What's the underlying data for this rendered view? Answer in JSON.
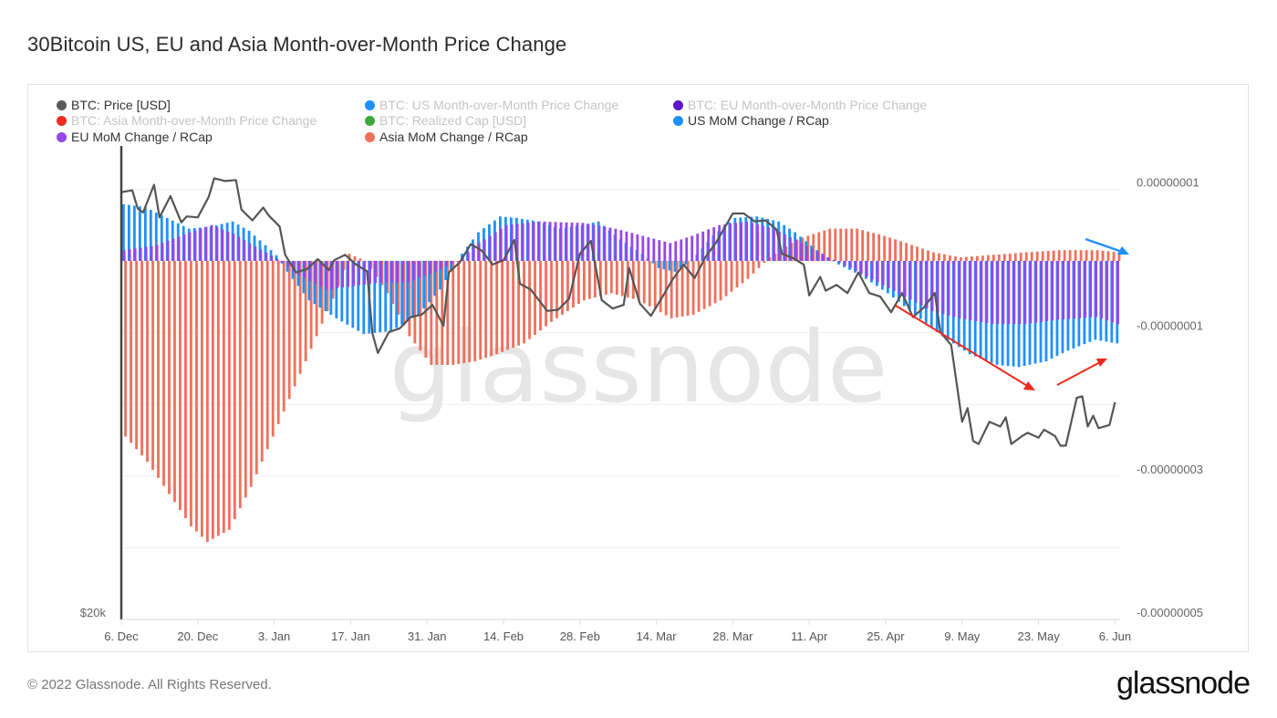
{
  "page": {
    "title": "30Bitcoin US, EU and Asia Month-over-Month Price Change",
    "footer": "© 2022 Glassnode. All Rights Reserved.",
    "logo": "glassnode",
    "watermark": "glassnode"
  },
  "legend": [
    {
      "label": "BTC: Price [USD]",
      "color": "#5a5a5a",
      "active": true
    },
    {
      "label": "BTC: US Month-over-Month Price Change",
      "color": "#1e90ff",
      "active": false
    },
    {
      "label": "BTC: EU Month-over-Month Price Change",
      "color": "#5b17c9",
      "active": false
    },
    {
      "label": "BTC: Asia Month-over-Month Price Change",
      "color": "#ee2a1e",
      "active": false
    },
    {
      "label": "BTC: Realized Cap [USD]",
      "color": "#3da93a",
      "active": false
    },
    {
      "label": "US MoM Change / RCap",
      "color": "#1e90ff",
      "active": true
    },
    {
      "label": "EU MoM Change / RCap",
      "color": "#9547e8",
      "active": true
    },
    {
      "label": "Asia MoM Change / RCap",
      "color": "#ef6f5c",
      "active": true
    }
  ],
  "annotations": [
    {
      "type": "arrow",
      "color": "#1e90ff",
      "description": "blue arrow pointing down-right at latest values"
    },
    {
      "type": "arrow",
      "color": "#ee2a1e",
      "description": "red arrow trending down (late Apr to mid May)"
    },
    {
      "type": "arrow",
      "color": "#ee2a1e",
      "description": "red arrow trending up (late May to early Jun)"
    }
  ],
  "chart_data": {
    "type": "bar",
    "title": "30Bitcoin US, EU and Asia Month-over-Month Price Change",
    "x_start": "2021-12-06",
    "x_end": "2022-06-07",
    "x_ticks": [
      "6. Dec",
      "20. Dec",
      "3. Jan",
      "17. Jan",
      "31. Jan",
      "14. Feb",
      "28. Feb",
      "14. Mar",
      "28. Mar",
      "11. Apr",
      "25. Apr",
      "9. May",
      "23. May",
      "6. Jun"
    ],
    "y_right": {
      "label": "MoM Change / RCap",
      "ticks": [
        "0.00000001",
        "-0.00000001",
        "-0.00000003",
        "-0.00000005"
      ],
      "range": [
        -5e-08,
        1e-08
      ],
      "unit_scale": 1e-08
    },
    "y_left": {
      "label": "Price [USD]",
      "scale": "log",
      "ticks": [
        "$20k"
      ]
    },
    "grid": true,
    "legend_position": "top-left",
    "series": [
      {
        "name": "US MoM Change / RCap",
        "type": "bar",
        "color": "#1e90ff",
        "units": "1e-8",
        "points": [
          [
            "2021-12-06",
            0.79
          ],
          [
            "2021-12-10",
            0.75
          ],
          [
            "2021-12-14",
            0.6
          ],
          [
            "2021-12-18",
            0.45
          ],
          [
            "2021-12-22",
            0.48
          ],
          [
            "2021-12-26",
            0.55
          ],
          [
            "2021-12-29",
            0.42
          ],
          [
            "2022-01-01",
            0.22
          ],
          [
            "2022-01-03",
            0.08
          ],
          [
            "2022-01-05",
            -0.15
          ],
          [
            "2022-01-09",
            -0.55
          ],
          [
            "2022-01-14",
            -0.8
          ],
          [
            "2022-01-19",
            -1.02
          ],
          [
            "2022-01-24",
            -0.98
          ],
          [
            "2022-01-29",
            -0.75
          ],
          [
            "2022-02-02",
            -0.4
          ],
          [
            "2022-02-05",
            0.0
          ],
          [
            "2022-02-09",
            0.4
          ],
          [
            "2022-02-13",
            0.62
          ],
          [
            "2022-02-16",
            0.6
          ],
          [
            "2022-02-20",
            0.55
          ],
          [
            "2022-02-24",
            0.45
          ],
          [
            "2022-02-28",
            0.5
          ],
          [
            "2022-03-03",
            0.55
          ],
          [
            "2022-03-07",
            0.3
          ],
          [
            "2022-03-11",
            0.1
          ],
          [
            "2022-03-14",
            -0.1
          ],
          [
            "2022-03-17",
            -0.15
          ],
          [
            "2022-03-20",
            0.0
          ],
          [
            "2022-03-24",
            0.35
          ],
          [
            "2022-03-28",
            0.6
          ],
          [
            "2022-04-01",
            0.62
          ],
          [
            "2022-04-05",
            0.55
          ],
          [
            "2022-04-08",
            0.4
          ],
          [
            "2022-04-12",
            0.15
          ],
          [
            "2022-04-16",
            -0.05
          ],
          [
            "2022-04-20",
            -0.2
          ],
          [
            "2022-04-25",
            -0.45
          ],
          [
            "2022-04-30",
            -0.75
          ],
          [
            "2022-05-05",
            -1.05
          ],
          [
            "2022-05-10",
            -1.3
          ],
          [
            "2022-05-15",
            -1.45
          ],
          [
            "2022-05-19",
            -1.48
          ],
          [
            "2022-05-24",
            -1.4
          ],
          [
            "2022-05-28",
            -1.25
          ],
          [
            "2022-06-02",
            -1.1
          ],
          [
            "2022-06-06",
            -1.15
          ]
        ]
      },
      {
        "name": "EU MoM Change / RCap",
        "type": "bar",
        "color": "#9547e8",
        "units": "1e-8",
        "points": [
          [
            "2021-12-06",
            0.15
          ],
          [
            "2021-12-12",
            0.22
          ],
          [
            "2021-12-18",
            0.4
          ],
          [
            "2021-12-22",
            0.5
          ],
          [
            "2021-12-26",
            0.38
          ],
          [
            "2021-12-30",
            0.2
          ],
          [
            "2022-01-03",
            0.03
          ],
          [
            "2022-01-07",
            -0.2
          ],
          [
            "2022-01-12",
            -0.4
          ],
          [
            "2022-01-17",
            -0.35
          ],
          [
            "2022-01-22",
            -0.3
          ],
          [
            "2022-01-27",
            -0.3
          ],
          [
            "2022-02-01",
            -0.15
          ],
          [
            "2022-02-05",
            0.0
          ],
          [
            "2022-02-09",
            0.25
          ],
          [
            "2022-02-14",
            0.5
          ],
          [
            "2022-02-20",
            0.55
          ],
          [
            "2022-02-28",
            0.53
          ],
          [
            "2022-03-06",
            0.45
          ],
          [
            "2022-03-11",
            0.35
          ],
          [
            "2022-03-16",
            0.25
          ],
          [
            "2022-03-20",
            0.35
          ],
          [
            "2022-03-25",
            0.5
          ],
          [
            "2022-03-30",
            0.55
          ],
          [
            "2022-04-04",
            0.45
          ],
          [
            "2022-04-09",
            0.25
          ],
          [
            "2022-04-14",
            0.05
          ],
          [
            "2022-04-18",
            -0.1
          ],
          [
            "2022-04-23",
            -0.3
          ],
          [
            "2022-04-28",
            -0.5
          ],
          [
            "2022-05-03",
            -0.7
          ],
          [
            "2022-05-08",
            -0.8
          ],
          [
            "2022-05-14",
            -0.88
          ],
          [
            "2022-05-20",
            -0.88
          ],
          [
            "2022-05-26",
            -0.82
          ],
          [
            "2022-06-02",
            -0.78
          ],
          [
            "2022-06-06",
            -0.88
          ]
        ]
      },
      {
        "name": "Asia MoM Change / RCap",
        "type": "bar",
        "color": "#ef6f5c",
        "units": "1e-8",
        "points": [
          [
            "2021-12-06",
            -2.45
          ],
          [
            "2021-12-10",
            -2.8
          ],
          [
            "2021-12-14",
            -3.25
          ],
          [
            "2021-12-18",
            -3.7
          ],
          [
            "2021-12-21",
            -3.92
          ],
          [
            "2021-12-25",
            -3.75
          ],
          [
            "2021-12-29",
            -3.15
          ],
          [
            "2022-01-02",
            -2.45
          ],
          [
            "2022-01-06",
            -1.75
          ],
          [
            "2022-01-10",
            -1.05
          ],
          [
            "2022-01-14",
            -0.35
          ],
          [
            "2022-01-16",
            0.1
          ],
          [
            "2022-01-19",
            0.0
          ],
          [
            "2022-01-23",
            -0.45
          ],
          [
            "2022-01-27",
            -1.05
          ],
          [
            "2022-01-31",
            -1.45
          ],
          [
            "2022-02-04",
            -1.45
          ],
          [
            "2022-02-08",
            -1.4
          ],
          [
            "2022-02-12",
            -1.3
          ],
          [
            "2022-02-17",
            -1.15
          ],
          [
            "2022-02-22",
            -0.85
          ],
          [
            "2022-02-28",
            -0.55
          ],
          [
            "2022-03-05",
            -0.45
          ],
          [
            "2022-03-10",
            -0.55
          ],
          [
            "2022-03-16",
            -0.8
          ],
          [
            "2022-03-20",
            -0.75
          ],
          [
            "2022-03-25",
            -0.55
          ],
          [
            "2022-03-30",
            -0.25
          ],
          [
            "2022-04-03",
            0.05
          ],
          [
            "2022-04-08",
            0.3
          ],
          [
            "2022-04-14",
            0.45
          ],
          [
            "2022-04-19",
            0.45
          ],
          [
            "2022-04-24",
            0.35
          ],
          [
            "2022-04-28",
            0.25
          ],
          [
            "2022-05-03",
            0.12
          ],
          [
            "2022-05-08",
            0.05
          ],
          [
            "2022-05-13",
            0.08
          ],
          [
            "2022-05-20",
            0.12
          ],
          [
            "2022-05-26",
            0.15
          ],
          [
            "2022-06-02",
            0.15
          ],
          [
            "2022-06-06",
            0.12
          ]
        ]
      },
      {
        "name": "BTC: Price [USD]",
        "type": "line",
        "color": "#555555",
        "points": [
          [
            "2021-12-06",
            49300
          ],
          [
            "2021-12-08",
            49500
          ],
          [
            "2021-12-09",
            47600
          ],
          [
            "2021-12-10",
            47200
          ],
          [
            "2021-12-12",
            50100
          ],
          [
            "2021-12-13",
            46700
          ],
          [
            "2021-12-15",
            48900
          ],
          [
            "2021-12-17",
            46200
          ],
          [
            "2021-12-18",
            46800
          ],
          [
            "2021-12-20",
            46700
          ],
          [
            "2021-12-22",
            48800
          ],
          [
            "2021-12-23",
            50800
          ],
          [
            "2021-12-25",
            50500
          ],
          [
            "2021-12-27",
            50600
          ],
          [
            "2021-12-28",
            47500
          ],
          [
            "2021-12-30",
            46400
          ],
          [
            "2022-01-01",
            47700
          ],
          [
            "2022-01-02",
            46900
          ],
          [
            "2022-01-04",
            45800
          ],
          [
            "2022-01-05",
            43100
          ],
          [
            "2022-01-07",
            41500
          ],
          [
            "2022-01-09",
            41800
          ],
          [
            "2022-01-11",
            42700
          ],
          [
            "2022-01-13",
            41700
          ],
          [
            "2022-01-14",
            42600
          ],
          [
            "2022-01-16",
            43100
          ],
          [
            "2022-01-18",
            42200
          ],
          [
            "2022-01-20",
            41600
          ],
          [
            "2022-01-21",
            36400
          ],
          [
            "2022-01-22",
            34900
          ],
          [
            "2022-01-24",
            36500
          ],
          [
            "2022-01-26",
            36800
          ],
          [
            "2022-01-28",
            37700
          ],
          [
            "2022-01-30",
            37900
          ],
          [
            "2022-02-01",
            38700
          ],
          [
            "2022-02-03",
            37000
          ],
          [
            "2022-02-04",
            41500
          ],
          [
            "2022-02-06",
            42400
          ],
          [
            "2022-02-08",
            44100
          ],
          [
            "2022-02-10",
            43500
          ],
          [
            "2022-02-12",
            42200
          ],
          [
            "2022-02-14",
            42600
          ],
          [
            "2022-02-16",
            44500
          ],
          [
            "2022-02-17",
            40500
          ],
          [
            "2022-02-19",
            40000
          ],
          [
            "2022-02-22",
            38200
          ],
          [
            "2022-02-24",
            38300
          ],
          [
            "2022-02-26",
            39200
          ],
          [
            "2022-02-28",
            43200
          ],
          [
            "2022-03-02",
            44400
          ],
          [
            "2022-03-04",
            39100
          ],
          [
            "2022-03-06",
            38400
          ],
          [
            "2022-03-08",
            38700
          ],
          [
            "2022-03-09",
            41900
          ],
          [
            "2022-03-11",
            38800
          ],
          [
            "2022-03-13",
            37800
          ],
          [
            "2022-03-15",
            39300
          ],
          [
            "2022-03-17",
            40900
          ],
          [
            "2022-03-19",
            42200
          ],
          [
            "2022-03-21",
            41000
          ],
          [
            "2022-03-23",
            42900
          ],
          [
            "2022-03-25",
            44300
          ],
          [
            "2022-03-28",
            47100
          ],
          [
            "2022-03-30",
            47100
          ],
          [
            "2022-04-01",
            46300
          ],
          [
            "2022-04-03",
            46400
          ],
          [
            "2022-04-05",
            45500
          ],
          [
            "2022-04-06",
            43200
          ],
          [
            "2022-04-08",
            42800
          ],
          [
            "2022-04-10",
            42200
          ],
          [
            "2022-04-11",
            39500
          ],
          [
            "2022-04-13",
            41100
          ],
          [
            "2022-04-14",
            39900
          ],
          [
            "2022-04-16",
            40400
          ],
          [
            "2022-04-18",
            39700
          ],
          [
            "2022-04-20",
            41500
          ],
          [
            "2022-04-22",
            39700
          ],
          [
            "2022-04-24",
            39400
          ],
          [
            "2022-04-26",
            38100
          ],
          [
            "2022-04-28",
            39700
          ],
          [
            "2022-04-30",
            37700
          ],
          [
            "2022-05-02",
            38500
          ],
          [
            "2022-05-04",
            39700
          ],
          [
            "2022-05-05",
            36500
          ],
          [
            "2022-05-07",
            35500
          ],
          [
            "2022-05-09",
            30100
          ],
          [
            "2022-05-10",
            31000
          ],
          [
            "2022-05-11",
            28900
          ],
          [
            "2022-05-12",
            28700
          ],
          [
            "2022-05-14",
            30100
          ],
          [
            "2022-05-16",
            29800
          ],
          [
            "2022-05-17",
            30400
          ],
          [
            "2022-05-18",
            28700
          ],
          [
            "2022-05-20",
            29200
          ],
          [
            "2022-05-21",
            29400
          ],
          [
            "2022-05-23",
            29100
          ],
          [
            "2022-05-24",
            29600
          ],
          [
            "2022-05-26",
            29200
          ],
          [
            "2022-05-27",
            28600
          ],
          [
            "2022-05-28",
            28600
          ],
          [
            "2022-05-30",
            31700
          ],
          [
            "2022-05-31",
            31800
          ],
          [
            "2022-06-01",
            29800
          ],
          [
            "2022-06-02",
            30500
          ],
          [
            "2022-06-03",
            29700
          ],
          [
            "2022-06-05",
            29900
          ],
          [
            "2022-06-06",
            31400
          ]
        ]
      }
    ]
  }
}
